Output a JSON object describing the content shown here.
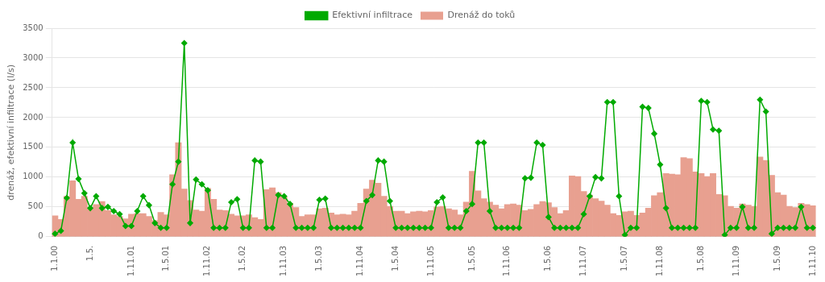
{
  "chart_data": {
    "type": "bar",
    "y_label": "drenáž, efektivní infiltrace (l/s)",
    "categories": [
      "1.1.00",
      null,
      null,
      null,
      null,
      null,
      "1.5.",
      null,
      null,
      null,
      null,
      null,
      null,
      "1.11.01",
      null,
      null,
      null,
      null,
      null,
      "1.5.01",
      null,
      null,
      null,
      null,
      null,
      null,
      "1.11.02",
      null,
      null,
      null,
      null,
      null,
      "1.5.02",
      null,
      null,
      null,
      null,
      null,
      null,
      "1.11.03",
      null,
      null,
      null,
      null,
      null,
      "1.5.03",
      null,
      null,
      null,
      null,
      null,
      null,
      "1.11.04",
      null,
      null,
      null,
      null,
      null,
      "1.5.04",
      null,
      null,
      null,
      null,
      null,
      "1.11.05",
      null,
      null,
      null,
      null,
      null,
      null,
      "1.5.05",
      null,
      null,
      null,
      null,
      null,
      "1.11.06",
      null,
      null,
      null,
      null,
      null,
      null,
      "1.5.06",
      null,
      null,
      null,
      null,
      null,
      "1.11.07",
      null,
      null,
      null,
      null,
      null,
      null,
      "1.5.07",
      null,
      null,
      null,
      null,
      null,
      "1.11.08",
      null,
      null,
      null,
      null,
      null,
      null,
      "1.5.08",
      null,
      null,
      null,
      null,
      null,
      "1.11.09",
      null,
      null,
      null,
      null,
      null,
      null,
      "1.5.09",
      null,
      null,
      null,
      null,
      null,
      "1.11.10"
    ],
    "series": [
      {
        "name": "Drenáž do toků",
        "type": "bar",
        "color": "#e8a090",
        "values": [
          350,
          290,
          680,
          940,
          630,
          680,
          490,
          540,
          590,
          440,
          370,
          340,
          300,
          380,
          390,
          390,
          340,
          270,
          410,
          370,
          1040,
          1580,
          800,
          610,
          450,
          430,
          810,
          630,
          450,
          440,
          380,
          350,
          350,
          370,
          320,
          290,
          790,
          820,
          740,
          670,
          560,
          490,
          340,
          370,
          370,
          470,
          480,
          400,
          370,
          380,
          370,
          430,
          560,
          800,
          950,
          900,
          680,
          510,
          430,
          430,
          390,
          420,
          430,
          420,
          440,
          500,
          510,
          470,
          450,
          370,
          580,
          1100,
          770,
          640,
          580,
          530,
          470,
          540,
          550,
          530,
          440,
          460,
          540,
          590,
          570,
          490,
          390,
          440,
          1020,
          1010,
          760,
          700,
          640,
          600,
          530,
          390,
          360,
          420,
          430,
          360,
          400,
          480,
          690,
          740,
          1060,
          1050,
          1040,
          1330,
          1310,
          1090,
          1060,
          1010,
          1060,
          710,
          690,
          510,
          480,
          550,
          530,
          510,
          1340,
          1280,
          1030,
          740,
          700,
          510,
          490,
          560,
          540,
          520
        ]
      },
      {
        "name": "Efektivní infiltrace",
        "type": "line",
        "color": "#00aa00",
        "marker": "diamond",
        "values": [
          50,
          100,
          650,
          1580,
          970,
          730,
          480,
          680,
          480,
          500,
          430,
          380,
          180,
          180,
          430,
          680,
          530,
          230,
          150,
          150,
          880,
          1260,
          3250,
          230,
          960,
          880,
          780,
          150,
          150,
          150,
          580,
          630,
          150,
          150,
          1280,
          1260,
          150,
          150,
          700,
          680,
          550,
          150,
          150,
          150,
          150,
          620,
          640,
          150,
          150,
          150,
          150,
          150,
          150,
          600,
          700,
          1280,
          1260,
          600,
          150,
          150,
          150,
          150,
          150,
          150,
          150,
          580,
          660,
          150,
          150,
          150,
          430,
          550,
          1580,
          1580,
          430,
          150,
          150,
          150,
          150,
          150,
          980,
          990,
          1580,
          1540,
          330,
          150,
          150,
          150,
          150,
          150,
          380,
          680,
          1000,
          980,
          2260,
          2260,
          680,
          30,
          150,
          150,
          2180,
          2160,
          1730,
          1210,
          480,
          150,
          150,
          150,
          150,
          150,
          2280,
          2260,
          1800,
          1780,
          30,
          150,
          150,
          500,
          150,
          150,
          2300,
          2100,
          50,
          150,
          150,
          150,
          150,
          500,
          150,
          150
        ]
      }
    ],
    "ylim": [
      0,
      3500
    ],
    "yticks": [
      0,
      500,
      1000,
      1500,
      2000,
      2500,
      3000,
      3500
    ],
    "grid": true,
    "legend": "top"
  }
}
